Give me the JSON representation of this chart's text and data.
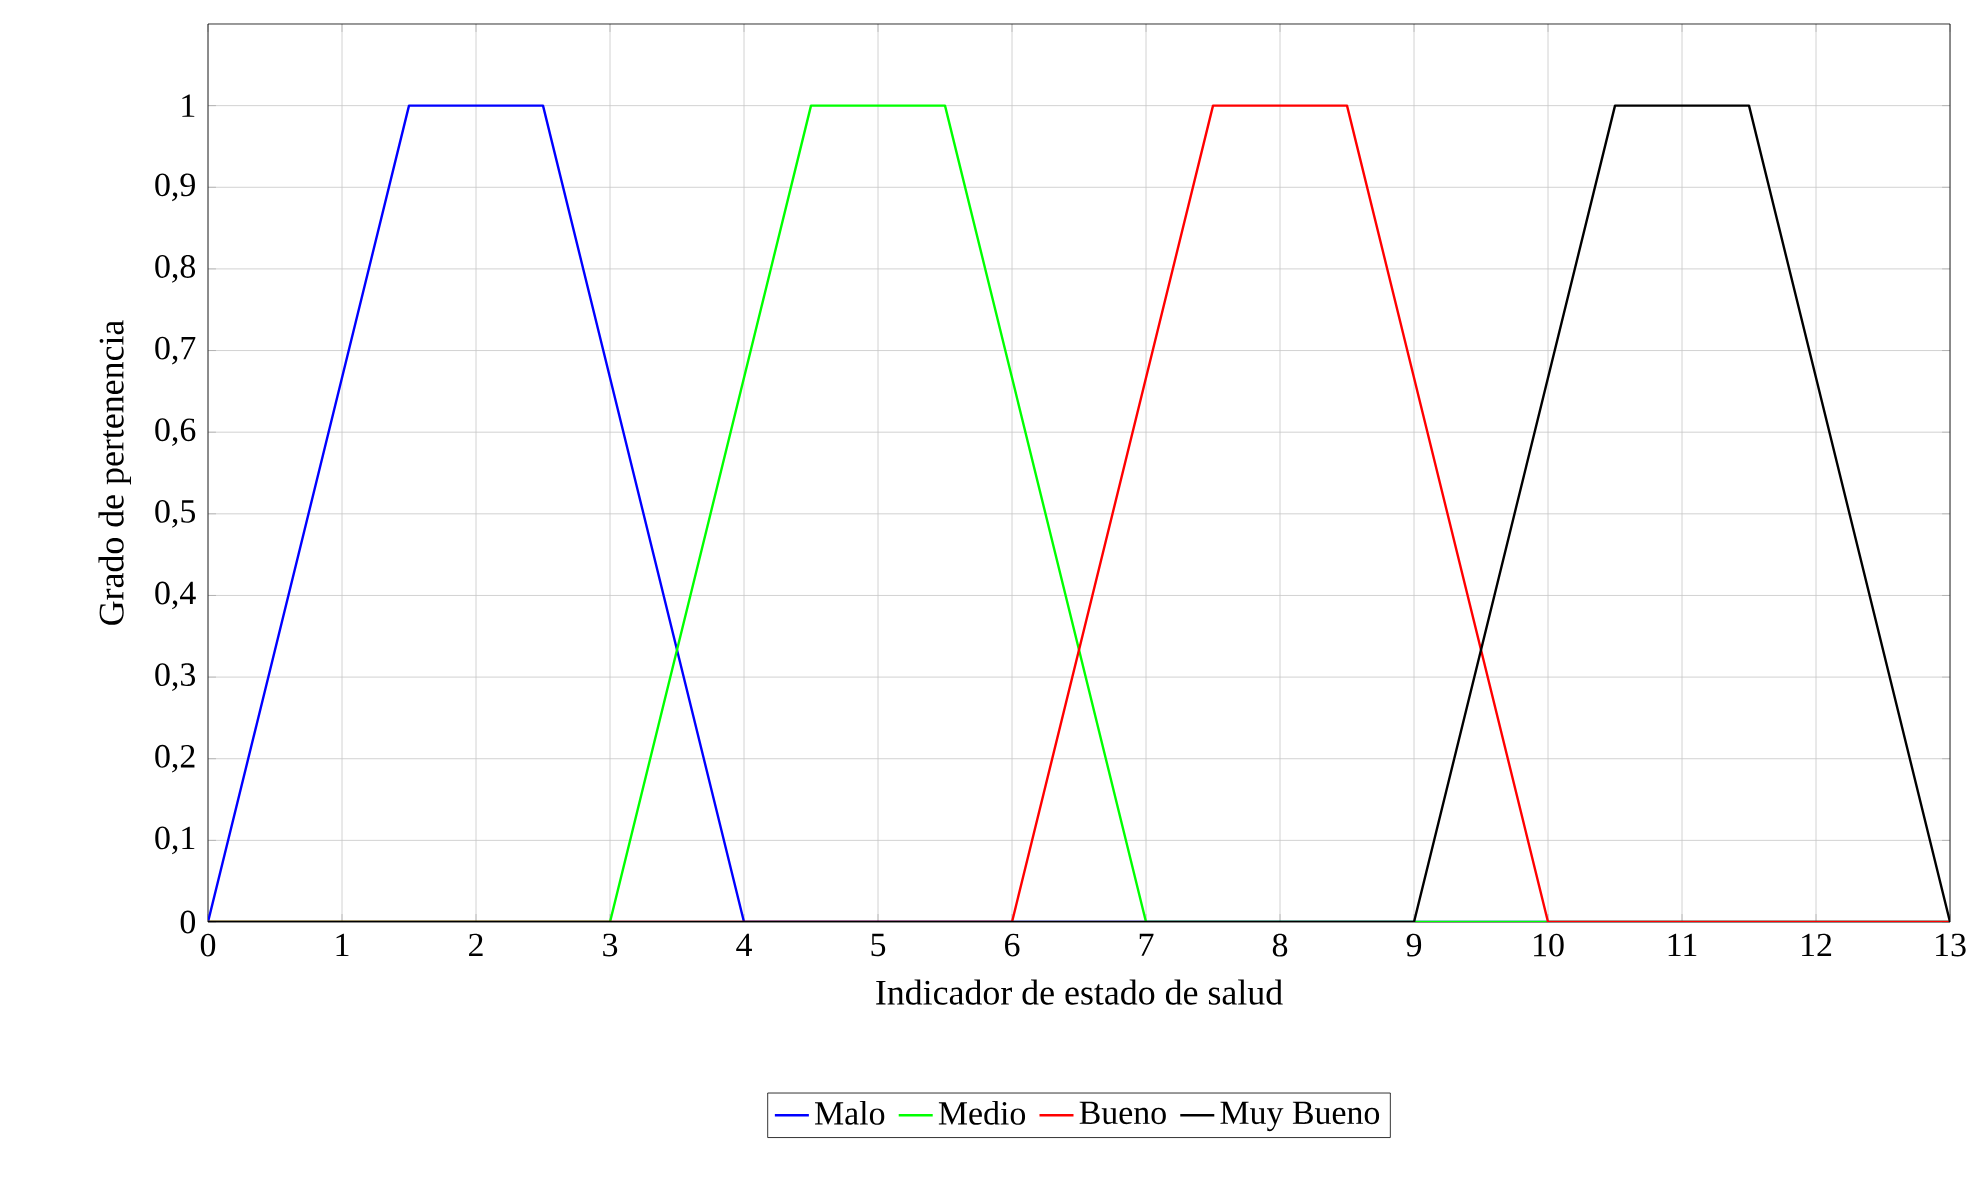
{
  "chart_data": {
    "type": "line",
    "xlabel": "Indicador de estado de salud",
    "ylabel": "Grado de pertenencia",
    "xlim": [
      0,
      13
    ],
    "ylim": [
      0,
      1.1
    ],
    "xticks": [
      0,
      1,
      2,
      3,
      4,
      5,
      6,
      7,
      8,
      9,
      10,
      11,
      12,
      13
    ],
    "yticks": [
      0,
      {
        "value": 0.1,
        "label": "0,1"
      },
      {
        "value": 0.2,
        "label": "0,2"
      },
      {
        "value": 0.3,
        "label": "0,3"
      },
      {
        "value": 0.4,
        "label": "0,4"
      },
      {
        "value": 0.5,
        "label": "0,5"
      },
      {
        "value": 0.6,
        "label": "0,6"
      },
      {
        "value": 0.7,
        "label": "0,7"
      },
      {
        "value": 0.8,
        "label": "0,8"
      },
      {
        "value": 0.9,
        "label": "0,9"
      },
      1
    ],
    "grid": true,
    "legend": "bottom",
    "marker": "none",
    "line_style": "solid",
    "series": [
      {
        "name": "Malo",
        "color": "#0000ff",
        "x": [
          0,
          1.5,
          2.5,
          4,
          13
        ],
        "values": [
          0,
          1,
          1,
          0,
          0
        ]
      },
      {
        "name": "Medio",
        "color": "#00ff00",
        "x": [
          0,
          3,
          4.5,
          5.5,
          7,
          13
        ],
        "values": [
          0,
          0,
          1,
          1,
          0,
          0
        ]
      },
      {
        "name": "Bueno",
        "color": "#ff0000",
        "x": [
          0,
          6,
          7.5,
          8.5,
          10,
          13
        ],
        "values": [
          0,
          0,
          1,
          1,
          0,
          0
        ]
      },
      {
        "name": "Muy Bueno",
        "color": "#000000",
        "x": [
          0,
          9,
          10.5,
          11.5,
          13
        ],
        "values": [
          0,
          0,
          1,
          1,
          0
        ]
      }
    ]
  }
}
